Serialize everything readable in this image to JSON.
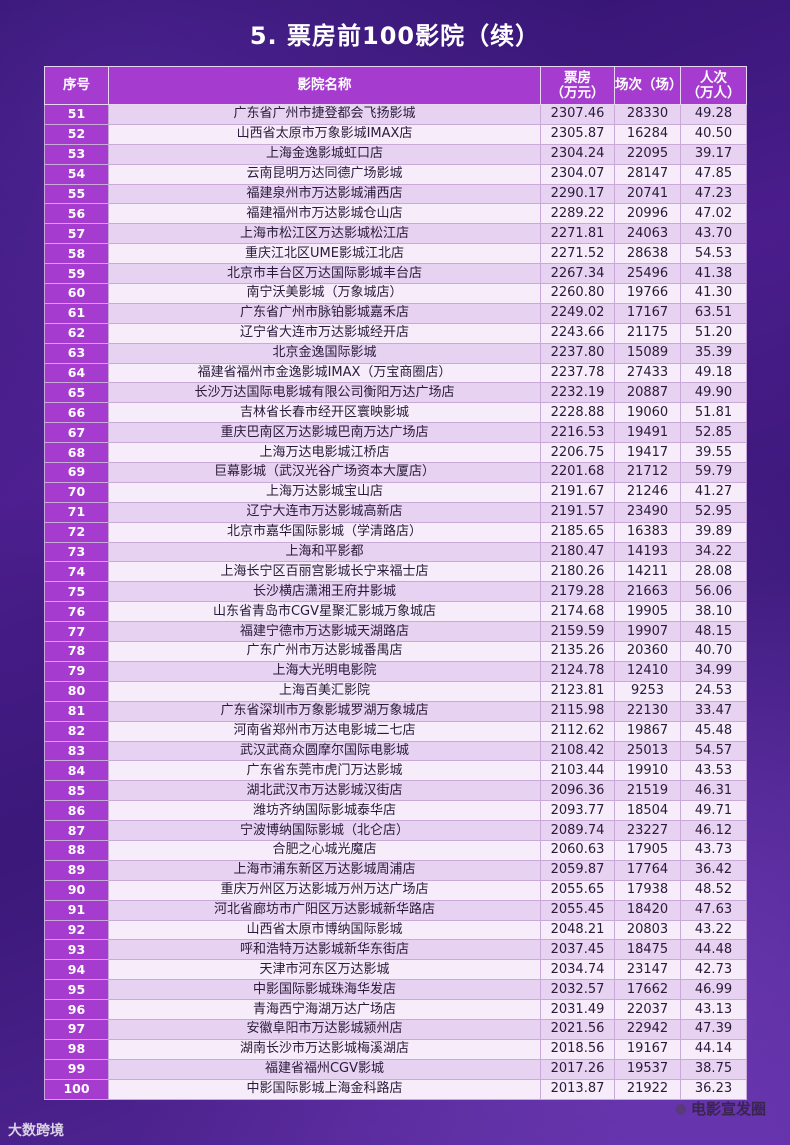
{
  "title": "5. 票房前100影院（续）",
  "table": {
    "headers": [
      "序号",
      "影院名称",
      "票房\n（万元）",
      "场次（场）",
      "人次\n（万人）"
    ],
    "rows": [
      [
        "51",
        "广东省广州市捷登都会飞扬影城",
        "2307.46",
        "28330",
        "49.28"
      ],
      [
        "52",
        "山西省太原市万象影城IMAX店",
        "2305.87",
        "16284",
        "40.50"
      ],
      [
        "53",
        "上海金逸影城虹口店",
        "2304.24",
        "22095",
        "39.17"
      ],
      [
        "54",
        "云南昆明万达同德广场影城",
        "2304.07",
        "28147",
        "47.85"
      ],
      [
        "55",
        "福建泉州市万达影城浦西店",
        "2290.17",
        "20741",
        "47.23"
      ],
      [
        "56",
        "福建福州市万达影城仓山店",
        "2289.22",
        "20996",
        "47.02"
      ],
      [
        "57",
        "上海市松江区万达影城松江店",
        "2271.81",
        "24063",
        "43.70"
      ],
      [
        "58",
        "重庆江北区UME影城江北店",
        "2271.52",
        "28638",
        "54.53"
      ],
      [
        "59",
        "北京市丰台区万达国际影城丰台店",
        "2267.34",
        "25496",
        "41.38"
      ],
      [
        "60",
        "南宁沃美影城（万象城店）",
        "2260.80",
        "19766",
        "41.30"
      ],
      [
        "61",
        "广东省广州市脉铂影城嘉禾店",
        "2249.02",
        "17167",
        "63.51"
      ],
      [
        "62",
        "辽宁省大连市万达影城经开店",
        "2243.66",
        "21175",
        "51.20"
      ],
      [
        "63",
        "北京金逸国际影城",
        "2237.80",
        "15089",
        "35.39"
      ],
      [
        "64",
        "福建省福州市金逸影城IMAX（万宝商圈店）",
        "2237.78",
        "27433",
        "49.18"
      ],
      [
        "65",
        "长沙万达国际电影城有限公司衡阳万达广场店",
        "2232.19",
        "20887",
        "49.90"
      ],
      [
        "66",
        "吉林省长春市经开区寰映影城",
        "2228.88",
        "19060",
        "51.81"
      ],
      [
        "67",
        "重庆巴南区万达影城巴南万达广场店",
        "2216.53",
        "19491",
        "52.85"
      ],
      [
        "68",
        "上海万达电影城江桥店",
        "2206.75",
        "19417",
        "39.55"
      ],
      [
        "69",
        "巨幕影城（武汉光谷广场资本大厦店）",
        "2201.68",
        "21712",
        "59.79"
      ],
      [
        "70",
        "上海万达影城宝山店",
        "2191.67",
        "21246",
        "41.27"
      ],
      [
        "71",
        "辽宁大连市万达影城高新店",
        "2191.57",
        "23490",
        "52.95"
      ],
      [
        "72",
        "北京市嘉华国际影城（学清路店）",
        "2185.65",
        "16383",
        "39.89"
      ],
      [
        "73",
        "上海和平影都",
        "2180.47",
        "14193",
        "34.22"
      ],
      [
        "74",
        "上海长宁区百丽宫影城长宁来福士店",
        "2180.26",
        "14211",
        "28.08"
      ],
      [
        "75",
        "长沙横店潇湘王府井影城",
        "2179.28",
        "21663",
        "56.06"
      ],
      [
        "76",
        "山东省青岛市CGV星聚汇影城万象城店",
        "2174.68",
        "19905",
        "38.10"
      ],
      [
        "77",
        "福建宁德市万达影城天湖路店",
        "2159.59",
        "19907",
        "48.15"
      ],
      [
        "78",
        "广东广州市万达影城番禺店",
        "2135.26",
        "20360",
        "40.70"
      ],
      [
        "79",
        "上海大光明电影院",
        "2124.78",
        "12410",
        "34.99"
      ],
      [
        "80",
        "上海百美汇影院",
        "2123.81",
        "9253",
        "24.53"
      ],
      [
        "81",
        "广东省深圳市万象影城罗湖万象城店",
        "2115.98",
        "22130",
        "33.47"
      ],
      [
        "82",
        "河南省郑州市万达电影城二七店",
        "2112.62",
        "19867",
        "45.48"
      ],
      [
        "83",
        "武汉武商众圆摩尔国际电影城",
        "2108.42",
        "25013",
        "54.57"
      ],
      [
        "84",
        "广东省东莞市虎门万达影城",
        "2103.44",
        "19910",
        "43.53"
      ],
      [
        "85",
        "湖北武汉市万达影城汉街店",
        "2096.36",
        "21519",
        "46.31"
      ],
      [
        "86",
        "潍坊齐纳国际影城泰华店",
        "2093.77",
        "18504",
        "49.71"
      ],
      [
        "87",
        "宁波博纳国际影城（北仑店）",
        "2089.74",
        "23227",
        "46.12"
      ],
      [
        "88",
        "合肥之心城光魔店",
        "2060.63",
        "17905",
        "43.73"
      ],
      [
        "89",
        "上海市浦东新区万达影城周浦店",
        "2059.87",
        "17764",
        "36.42"
      ],
      [
        "90",
        "重庆万州区万达影城万州万达广场店",
        "2055.65",
        "17938",
        "48.52"
      ],
      [
        "91",
        "河北省廊坊市广阳区万达影城新华路店",
        "2055.45",
        "18420",
        "47.63"
      ],
      [
        "92",
        "山西省太原市博纳国际影城",
        "2048.21",
        "20803",
        "43.22"
      ],
      [
        "93",
        "呼和浩特万达影城新华东街店",
        "2037.45",
        "18475",
        "44.48"
      ],
      [
        "94",
        "天津市河东区万达影城",
        "2034.74",
        "23147",
        "42.73"
      ],
      [
        "95",
        "中影国际影城珠海华发店",
        "2032.57",
        "17662",
        "46.99"
      ],
      [
        "96",
        "青海西宁海湖万达广场店",
        "2031.49",
        "22037",
        "43.13"
      ],
      [
        "97",
        "安徽阜阳市万达影城颍州店",
        "2021.56",
        "22942",
        "47.39"
      ],
      [
        "98",
        "湖南长沙市万达影城梅溪湖店",
        "2018.56",
        "19167",
        "44.14"
      ],
      [
        "99",
        "福建省福州CGV影城",
        "2017.26",
        "19537",
        "38.75"
      ],
      [
        "100",
        "中影国际影城上海金科路店",
        "2013.87",
        "21922",
        "36.23"
      ]
    ]
  },
  "watermark_left": "大数跨境",
  "watermark_right": "电影宣发圈",
  "icons": {
    "watermark_right": "wechat-icon"
  }
}
